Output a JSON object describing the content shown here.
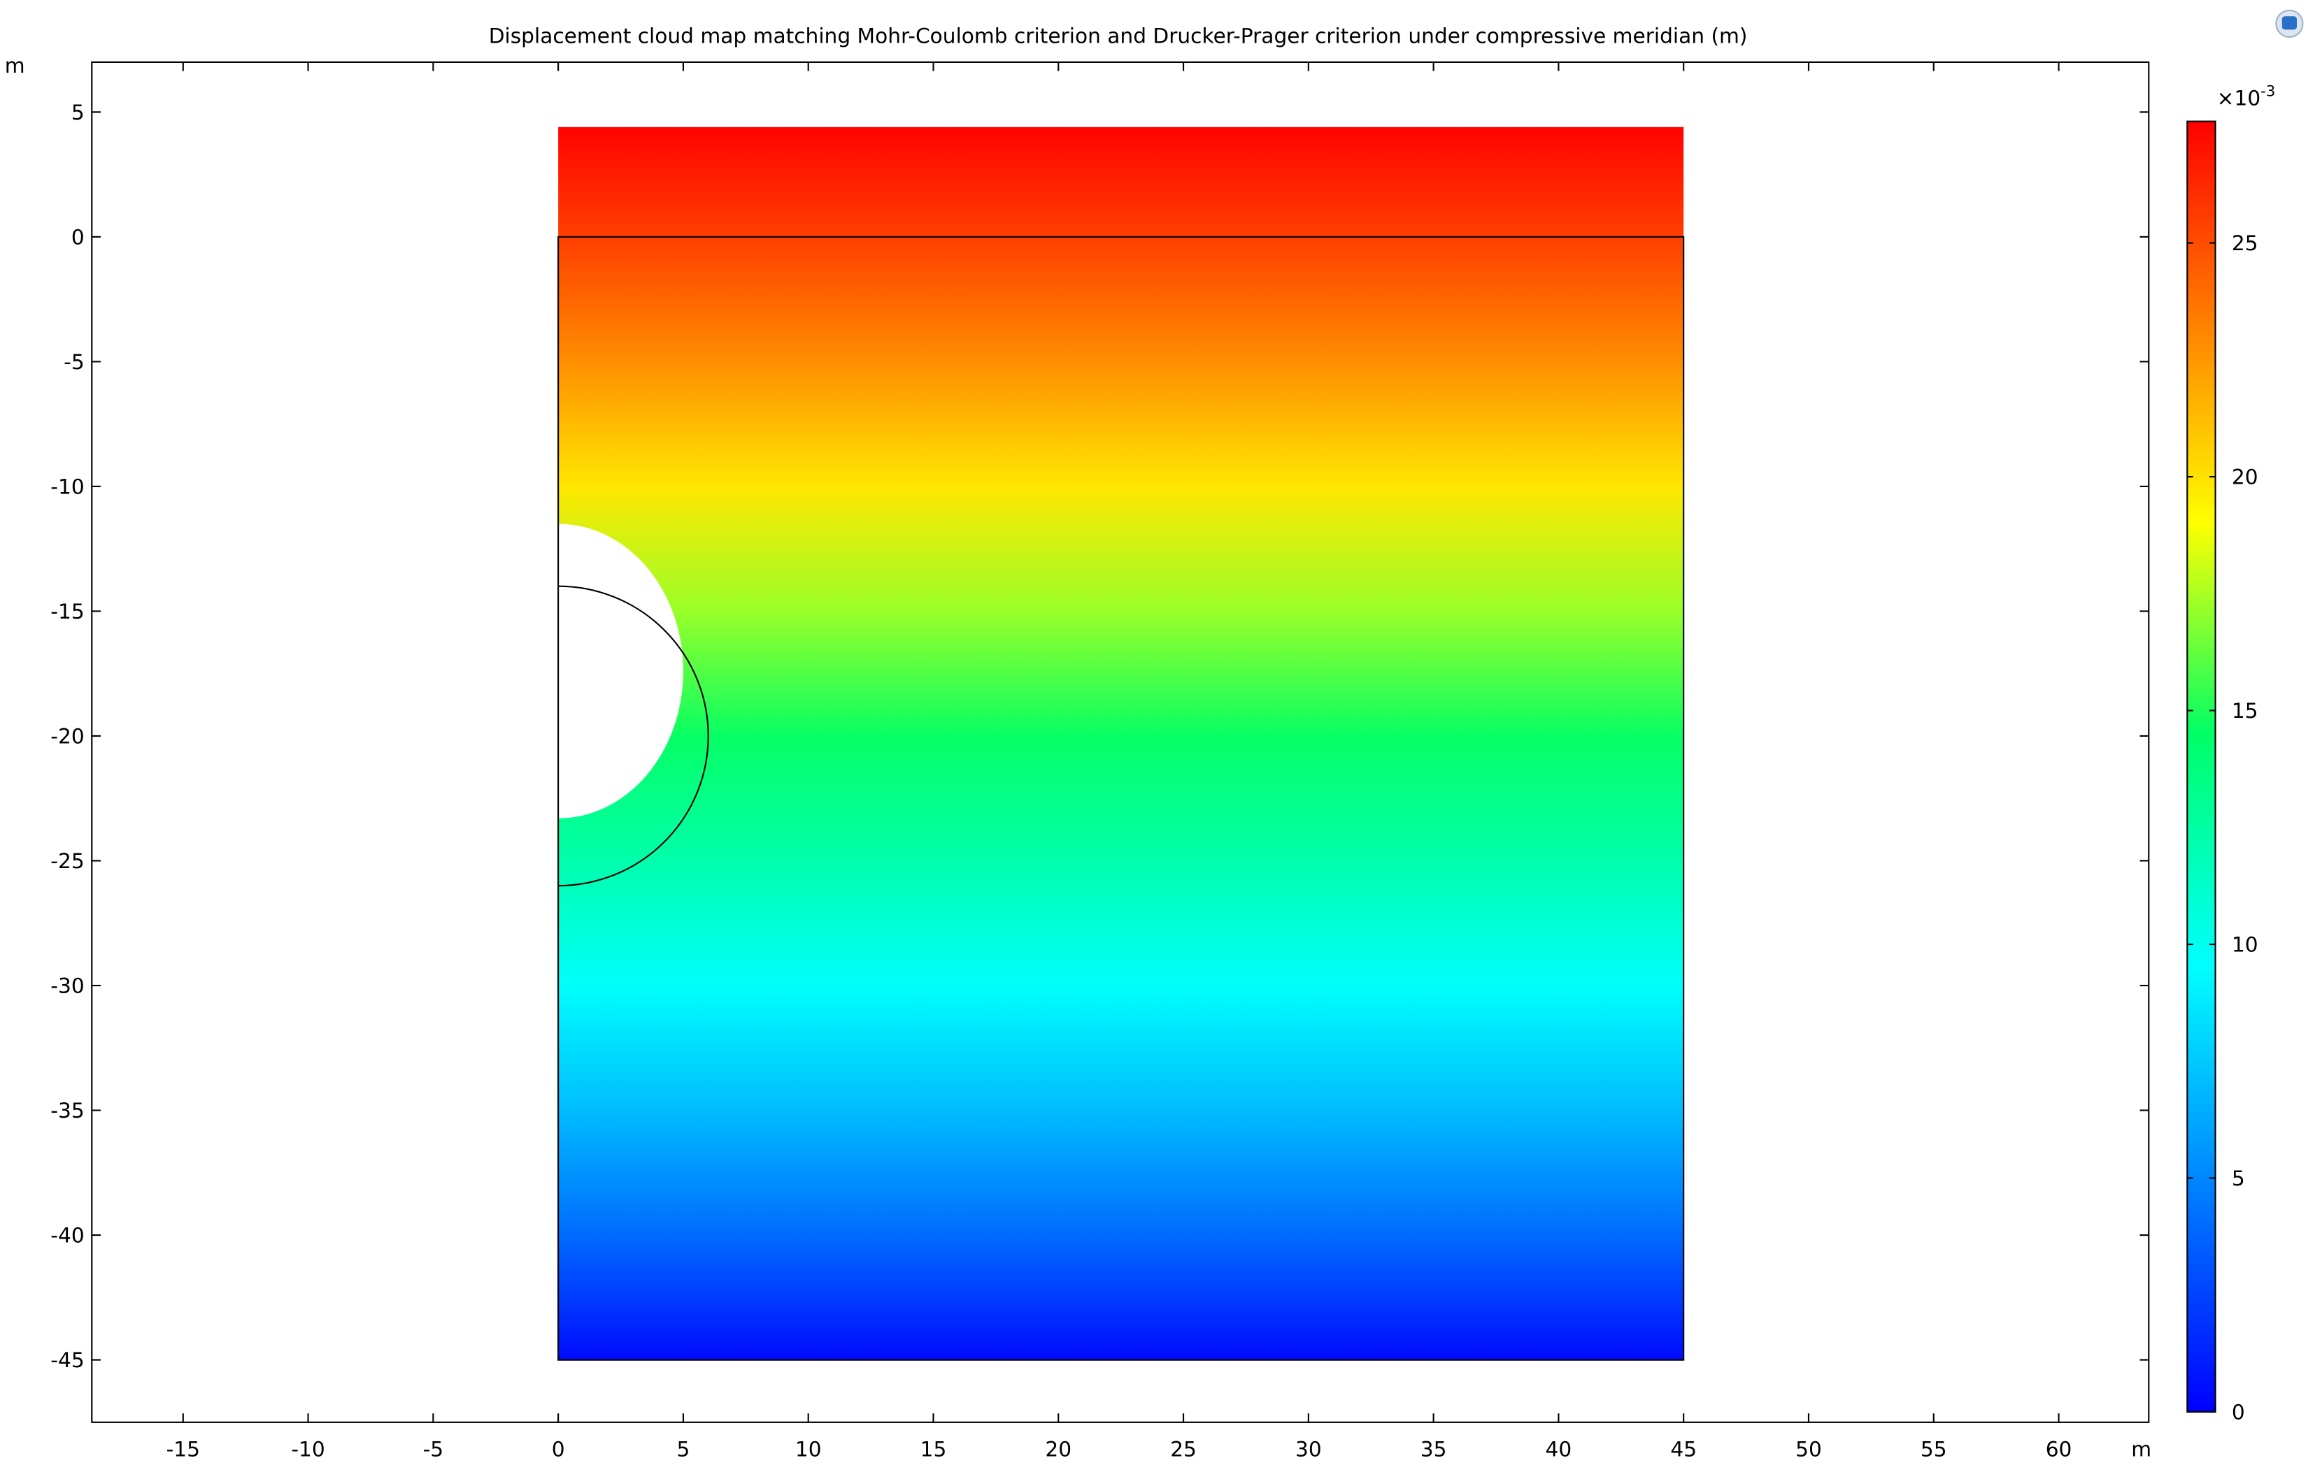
{
  "chart_data": {
    "type": "surface",
    "title": "Displacement cloud map matching Mohr-Coulomb criterion and Drucker-Prager criterion under compressive meridian (m)",
    "x_unit_label": "m",
    "y_unit_label": "m",
    "xlim": [
      -18.65,
      63.6
    ],
    "ylim": [
      -47.5,
      7.0
    ],
    "xticks": [
      -15,
      -10,
      -5,
      0,
      5,
      10,
      15,
      20,
      25,
      30,
      35,
      40,
      45,
      50,
      55,
      60
    ],
    "yticks": [
      -45,
      -40,
      -35,
      -30,
      -25,
      -20,
      -15,
      -10,
      -5,
      0,
      5
    ],
    "field": {
      "y": [
        4.4,
        0,
        -5,
        -10,
        -15,
        -20,
        -25,
        -30,
        -35,
        -40,
        -45
      ],
      "values": [
        27.5,
        25.5,
        22.8,
        19.8,
        17.2,
        14.6,
        12.2,
        9.6,
        7.0,
        4.0,
        0.4
      ]
    },
    "domain_x": [
      0,
      45
    ],
    "domain_y": [
      -45,
      0
    ],
    "hole": {
      "center": [
        0,
        -17.4
      ],
      "rx": 5,
      "ry": 5.9
    },
    "tunnel": {
      "center": [
        0,
        -20
      ],
      "radius": 6
    },
    "colorbar_label": "×10",
    "colorbar_exponent": "-3",
    "colorbar_lim": [
      0,
      27.6
    ],
    "colorbar_ticks": [
      0,
      5,
      10,
      15,
      20,
      25
    ],
    "colormap": {
      "values": [
        0,
        9.5,
        14.5,
        19,
        27.6
      ],
      "colors": [
        "#0000ff",
        "#00ffff",
        "#00ff66",
        "#ffff00",
        "#ff0000"
      ]
    }
  }
}
